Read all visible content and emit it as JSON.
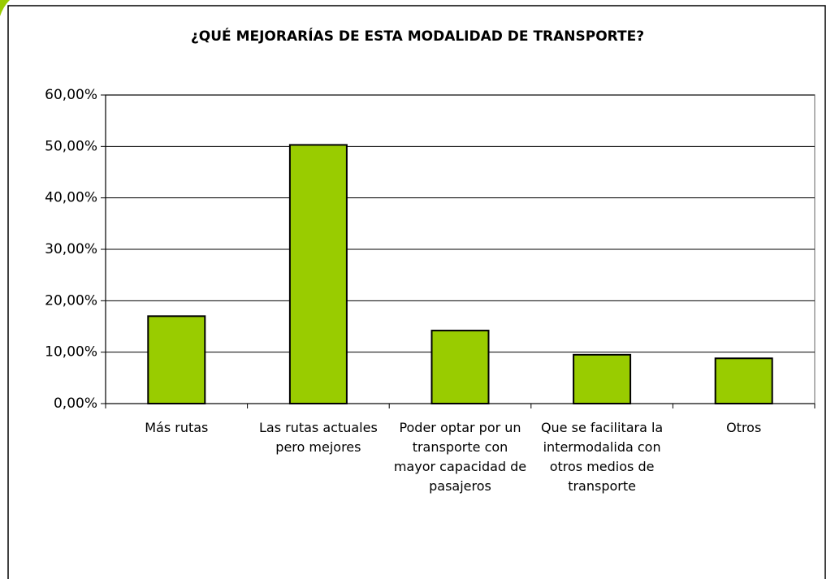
{
  "chart_data": {
    "type": "bar",
    "title": "¿QUÉ MEJORARÍAS DE ESTA MODALIDAD DE TRANSPORTE?",
    "categories": [
      "Más rutas",
      "Las rutas actuales pero mejores",
      "Poder optar por un transporte con mayor capacidad de pasajeros",
      "Que se facilitara la intermodalida con otros medios de transporte",
      "Otros"
    ],
    "values": [
      17,
      50.3,
      14.2,
      9.5,
      8.8
    ],
    "color": "#99cc00",
    "ylim": [
      0,
      60
    ],
    "yticks": [
      {
        "value": 0,
        "label": "0,00%"
      },
      {
        "value": 10,
        "label": "10,00%"
      },
      {
        "value": 20,
        "label": "20,00%"
      },
      {
        "value": 30,
        "label": "30,00%"
      },
      {
        "value": 40,
        "label": "40,00%"
      },
      {
        "value": 50,
        "label": "50,00%"
      },
      {
        "value": 60,
        "label": "60,00%"
      }
    ],
    "grid": true
  }
}
